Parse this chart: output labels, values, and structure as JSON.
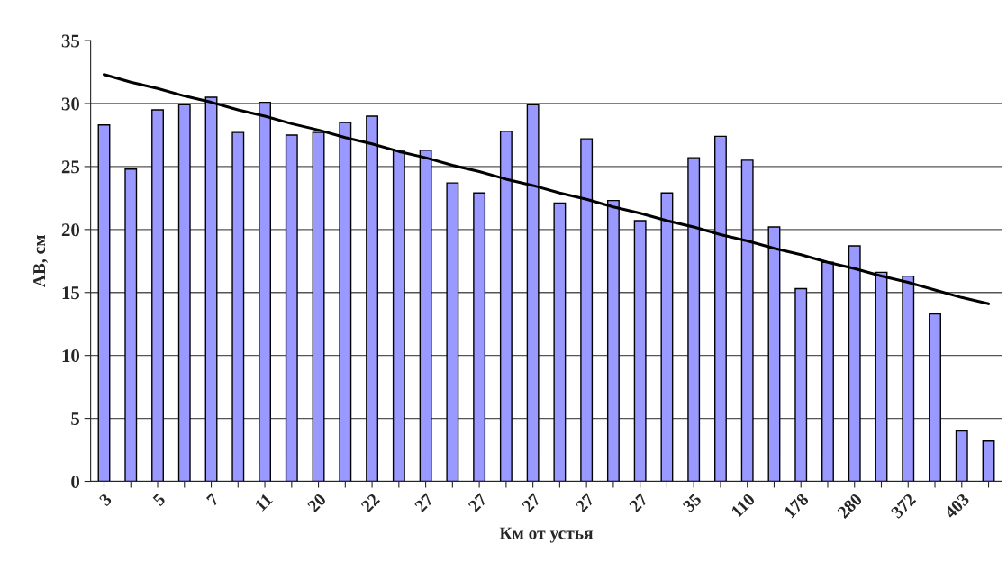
{
  "chart_data": {
    "type": "bar",
    "xlabel": "Км от устья",
    "ylabel": "АВ, см",
    "categories": [
      "3",
      null,
      "5",
      null,
      "7",
      null,
      "11",
      null,
      "20",
      null,
      "22",
      null,
      "27",
      null,
      "27",
      null,
      "27",
      null,
      "27",
      null,
      "27",
      null,
      "35",
      null,
      "110",
      null,
      "178",
      null,
      "280",
      null,
      "372",
      null,
      "403",
      null
    ],
    "series": [
      {
        "color": "#9999ff",
        "values": [
          28.3,
          24.8,
          29.5,
          29.9,
          30.5,
          27.7,
          30.1,
          27.5,
          27.7,
          28.5,
          29.0,
          26.3,
          26.3,
          23.7,
          22.9,
          27.8,
          29.9,
          22.1,
          27.2,
          22.3,
          20.7,
          22.9,
          25.7,
          27.4,
          25.5,
          20.2,
          15.3,
          17.4,
          18.7,
          16.6,
          16.3,
          13.3,
          4.0,
          3.2
        ]
      },
      {
        "type": "line",
        "color": "#000000",
        "values": [
          32.3,
          31.7,
          31.2,
          30.6,
          30.1,
          29.5,
          29.0,
          28.4,
          27.9,
          27.3,
          26.8,
          26.2,
          25.7,
          25.1,
          24.6,
          24.0,
          23.5,
          22.9,
          22.4,
          21.8,
          21.3,
          20.7,
          20.2,
          19.6,
          19.1,
          18.5,
          18.0,
          17.4,
          16.9,
          16.3,
          15.8,
          15.2,
          14.6,
          14.1
        ]
      }
    ],
    "ylim": [
      0,
      35
    ],
    "yticks": [
      0,
      5,
      10,
      15,
      20,
      25,
      30,
      35
    ],
    "grid": "y",
    "legend": false
  }
}
